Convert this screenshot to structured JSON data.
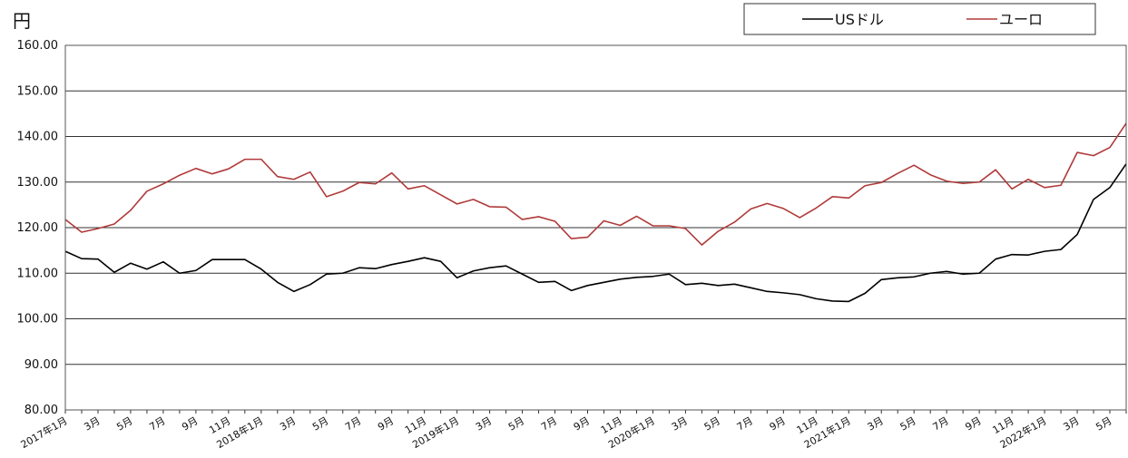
{
  "chart_data": {
    "type": "line",
    "unit_label": "円",
    "ylim": [
      80,
      160
    ],
    "y_ticks": [
      "80.00",
      "90.00",
      "100.00",
      "110.00",
      "120.00",
      "130.00",
      "140.00",
      "150.00",
      "160.00"
    ],
    "grid": true,
    "legend_position": "top-right",
    "x": [
      "2017-01",
      "2017-02",
      "2017-03",
      "2017-04",
      "2017-05",
      "2017-06",
      "2017-07",
      "2017-08",
      "2017-09",
      "2017-10",
      "2017-11",
      "2017-12",
      "2018-01",
      "2018-02",
      "2018-03",
      "2018-04",
      "2018-05",
      "2018-06",
      "2018-07",
      "2018-08",
      "2018-09",
      "2018-10",
      "2018-11",
      "2018-12",
      "2019-01",
      "2019-02",
      "2019-03",
      "2019-04",
      "2019-05",
      "2019-06",
      "2019-07",
      "2019-08",
      "2019-09",
      "2019-10",
      "2019-11",
      "2019-12",
      "2020-01",
      "2020-02",
      "2020-03",
      "2020-04",
      "2020-05",
      "2020-06",
      "2020-07",
      "2020-08",
      "2020-09",
      "2020-10",
      "2020-11",
      "2020-12",
      "2021-01",
      "2021-02",
      "2021-03",
      "2021-04",
      "2021-05",
      "2021-06",
      "2021-07",
      "2021-08",
      "2021-09",
      "2021-10",
      "2021-11",
      "2021-12",
      "2022-01",
      "2022-02",
      "2022-03",
      "2022-04",
      "2022-05",
      "2022-06"
    ],
    "x_tick_labels": [
      "2017年1月",
      "",
      "3月",
      "",
      "5月",
      "",
      "7月",
      "",
      "9月",
      "",
      "11月",
      "",
      "2018年1月",
      "",
      "3月",
      "",
      "5月",
      "",
      "7月",
      "",
      "9月",
      "",
      "11月",
      "",
      "2019年1月",
      "",
      "3月",
      "",
      "5月",
      "",
      "7月",
      "",
      "9月",
      "",
      "11月",
      "",
      "2020年1月",
      "",
      "3月",
      "",
      "5月",
      "",
      "7月",
      "",
      "9月",
      "",
      "11月",
      "",
      "2021年1月",
      "",
      "3月",
      "",
      "5月",
      "",
      "7月",
      "",
      "9月",
      "",
      "11月",
      "",
      "2022年1月",
      "",
      "3月",
      "",
      "5月",
      ""
    ],
    "series": [
      {
        "name": "USドル",
        "color": "#000000",
        "values": [
          114.8,
          113.2,
          113.1,
          110.2,
          112.2,
          110.9,
          112.5,
          110.0,
          110.6,
          113.0,
          113.0,
          113.0,
          110.9,
          108.0,
          106.0,
          107.5,
          109.8,
          110.0,
          111.2,
          111.0,
          111.9,
          112.6,
          113.4,
          112.6,
          109.0,
          110.5,
          111.2,
          111.6,
          109.8,
          108.0,
          108.2,
          106.2,
          107.3,
          108.0,
          108.7,
          109.1,
          109.3,
          109.8,
          107.5,
          107.8,
          107.3,
          107.6,
          106.8,
          106.0,
          105.7,
          105.3,
          104.4,
          103.9,
          103.8,
          105.6,
          108.6,
          109.0,
          109.2,
          110.0,
          110.4,
          109.8,
          110.0,
          113.1,
          114.1,
          114.0,
          114.8,
          115.2,
          118.5,
          126.2,
          128.8,
          134.0
        ]
      },
      {
        "name": "ユーロ",
        "color": "#b03a3a",
        "values": [
          121.8,
          119.0,
          119.8,
          120.8,
          123.8,
          128.0,
          129.6,
          131.5,
          133.0,
          131.8,
          132.9,
          135.0,
          135.0,
          131.2,
          130.6,
          132.2,
          126.8,
          128.0,
          129.9,
          129.6,
          132.0,
          128.5,
          129.2,
          127.2,
          125.2,
          126.2,
          124.6,
          124.5,
          121.8,
          122.4,
          121.4,
          117.6,
          117.9,
          121.5,
          120.5,
          122.5,
          120.4,
          120.4,
          119.8,
          116.2,
          119.2,
          121.2,
          124.1,
          125.3,
          124.2,
          122.2,
          124.3,
          126.8,
          126.5,
          129.2,
          129.9,
          131.9,
          133.7,
          131.6,
          130.2,
          129.7,
          130.0,
          132.7,
          128.5,
          130.6,
          128.8,
          129.3,
          136.5,
          135.8,
          137.6,
          142.9
        ]
      }
    ]
  }
}
